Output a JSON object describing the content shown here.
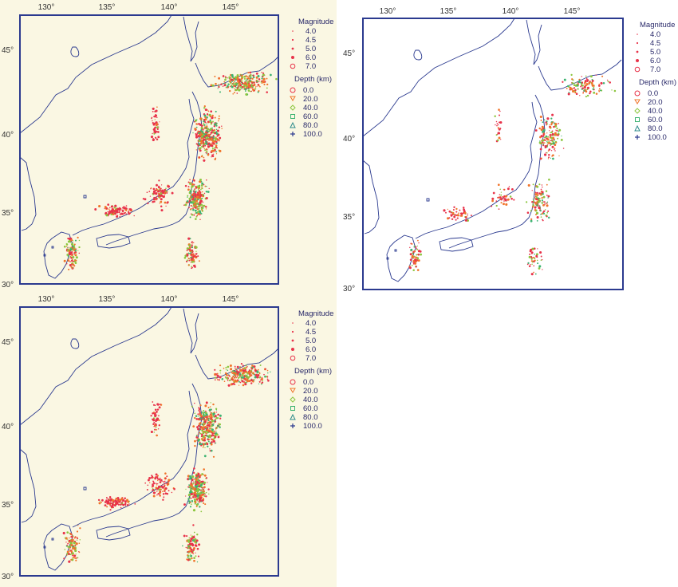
{
  "colors": {
    "cream_bg": "#faf7e3",
    "white_bg": "#ffffff",
    "frame": "#2b3a8f",
    "coast": "#2b3a8f",
    "depth_0": "#e8334a",
    "depth_20": "#f0742a",
    "depth_40": "#8cc63f",
    "depth_60": "#3cb371",
    "depth_80": "#2e8b8b",
    "depth_100": "#2b3a8f"
  },
  "maps": [
    {
      "id": "top-left",
      "background": "cream",
      "lon_ticks": [
        "130°",
        "135°",
        "140°",
        "145°"
      ],
      "lat_ticks": [
        "45°",
        "40°",
        "35°",
        "30°"
      ],
      "legend": {
        "magnitude_title": "Magnitude",
        "magnitudes": [
          "4.0",
          "4.5",
          "5.0",
          "6.0",
          "7.0"
        ],
        "depth_title": "Depth (km)",
        "depths": [
          "0.0",
          "20.0",
          "40.0",
          "60.0",
          "80.0",
          "100.0"
        ]
      },
      "density": 1.0
    },
    {
      "id": "top-right",
      "background": "white",
      "lon_ticks": [
        "130°",
        "135°",
        "140°",
        "145°"
      ],
      "lat_ticks": [
        "45°",
        "40°",
        "35°",
        "30°"
      ],
      "legend": {
        "magnitude_title": "Magnitude",
        "magnitudes": [
          "4.0",
          "4.5",
          "5.0",
          "6.0",
          "7.0"
        ],
        "depth_title": "Depth (km)",
        "depths": [
          "0.0",
          "20.0",
          "40.0",
          "60.0",
          "80.0",
          "100.0"
        ]
      },
      "density": 0.45
    },
    {
      "id": "bottom-left",
      "background": "cream",
      "lon_ticks": [
        "130°",
        "135°",
        "140°",
        "145°"
      ],
      "lat_ticks": [
        "45°",
        "40°",
        "35°",
        "30°"
      ],
      "legend": {
        "magnitude_title": "Magnitude",
        "magnitudes": [
          "4.0",
          "4.5",
          "5.0",
          "6.0",
          "7.0"
        ],
        "depth_title": "Depth (km)",
        "depths": [
          "0.0",
          "20.0",
          "40.0",
          "60.0",
          "80.0",
          "100.0"
        ]
      },
      "density": 1.0
    }
  ]
}
